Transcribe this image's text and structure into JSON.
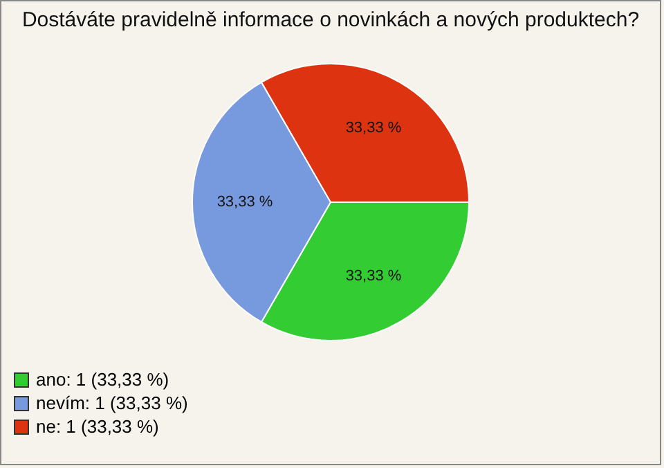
{
  "chart_data": {
    "type": "pie",
    "title": "Dostáváte pravidelně informace o novinkách a nových produktech?",
    "categories": [
      "ano: 1 (33,33 %)",
      "nevím: 1 (33,33 %)",
      "ne: 1 (33,33 %)"
    ],
    "values": [
      33.33,
      33.33,
      33.33
    ],
    "value_labels": [
      "33,33 %",
      "33,33 %",
      "33,33 %"
    ],
    "colors": [
      "#33cc33",
      "#7799dd",
      "#dd3311"
    ],
    "legend": "bottom left"
  }
}
